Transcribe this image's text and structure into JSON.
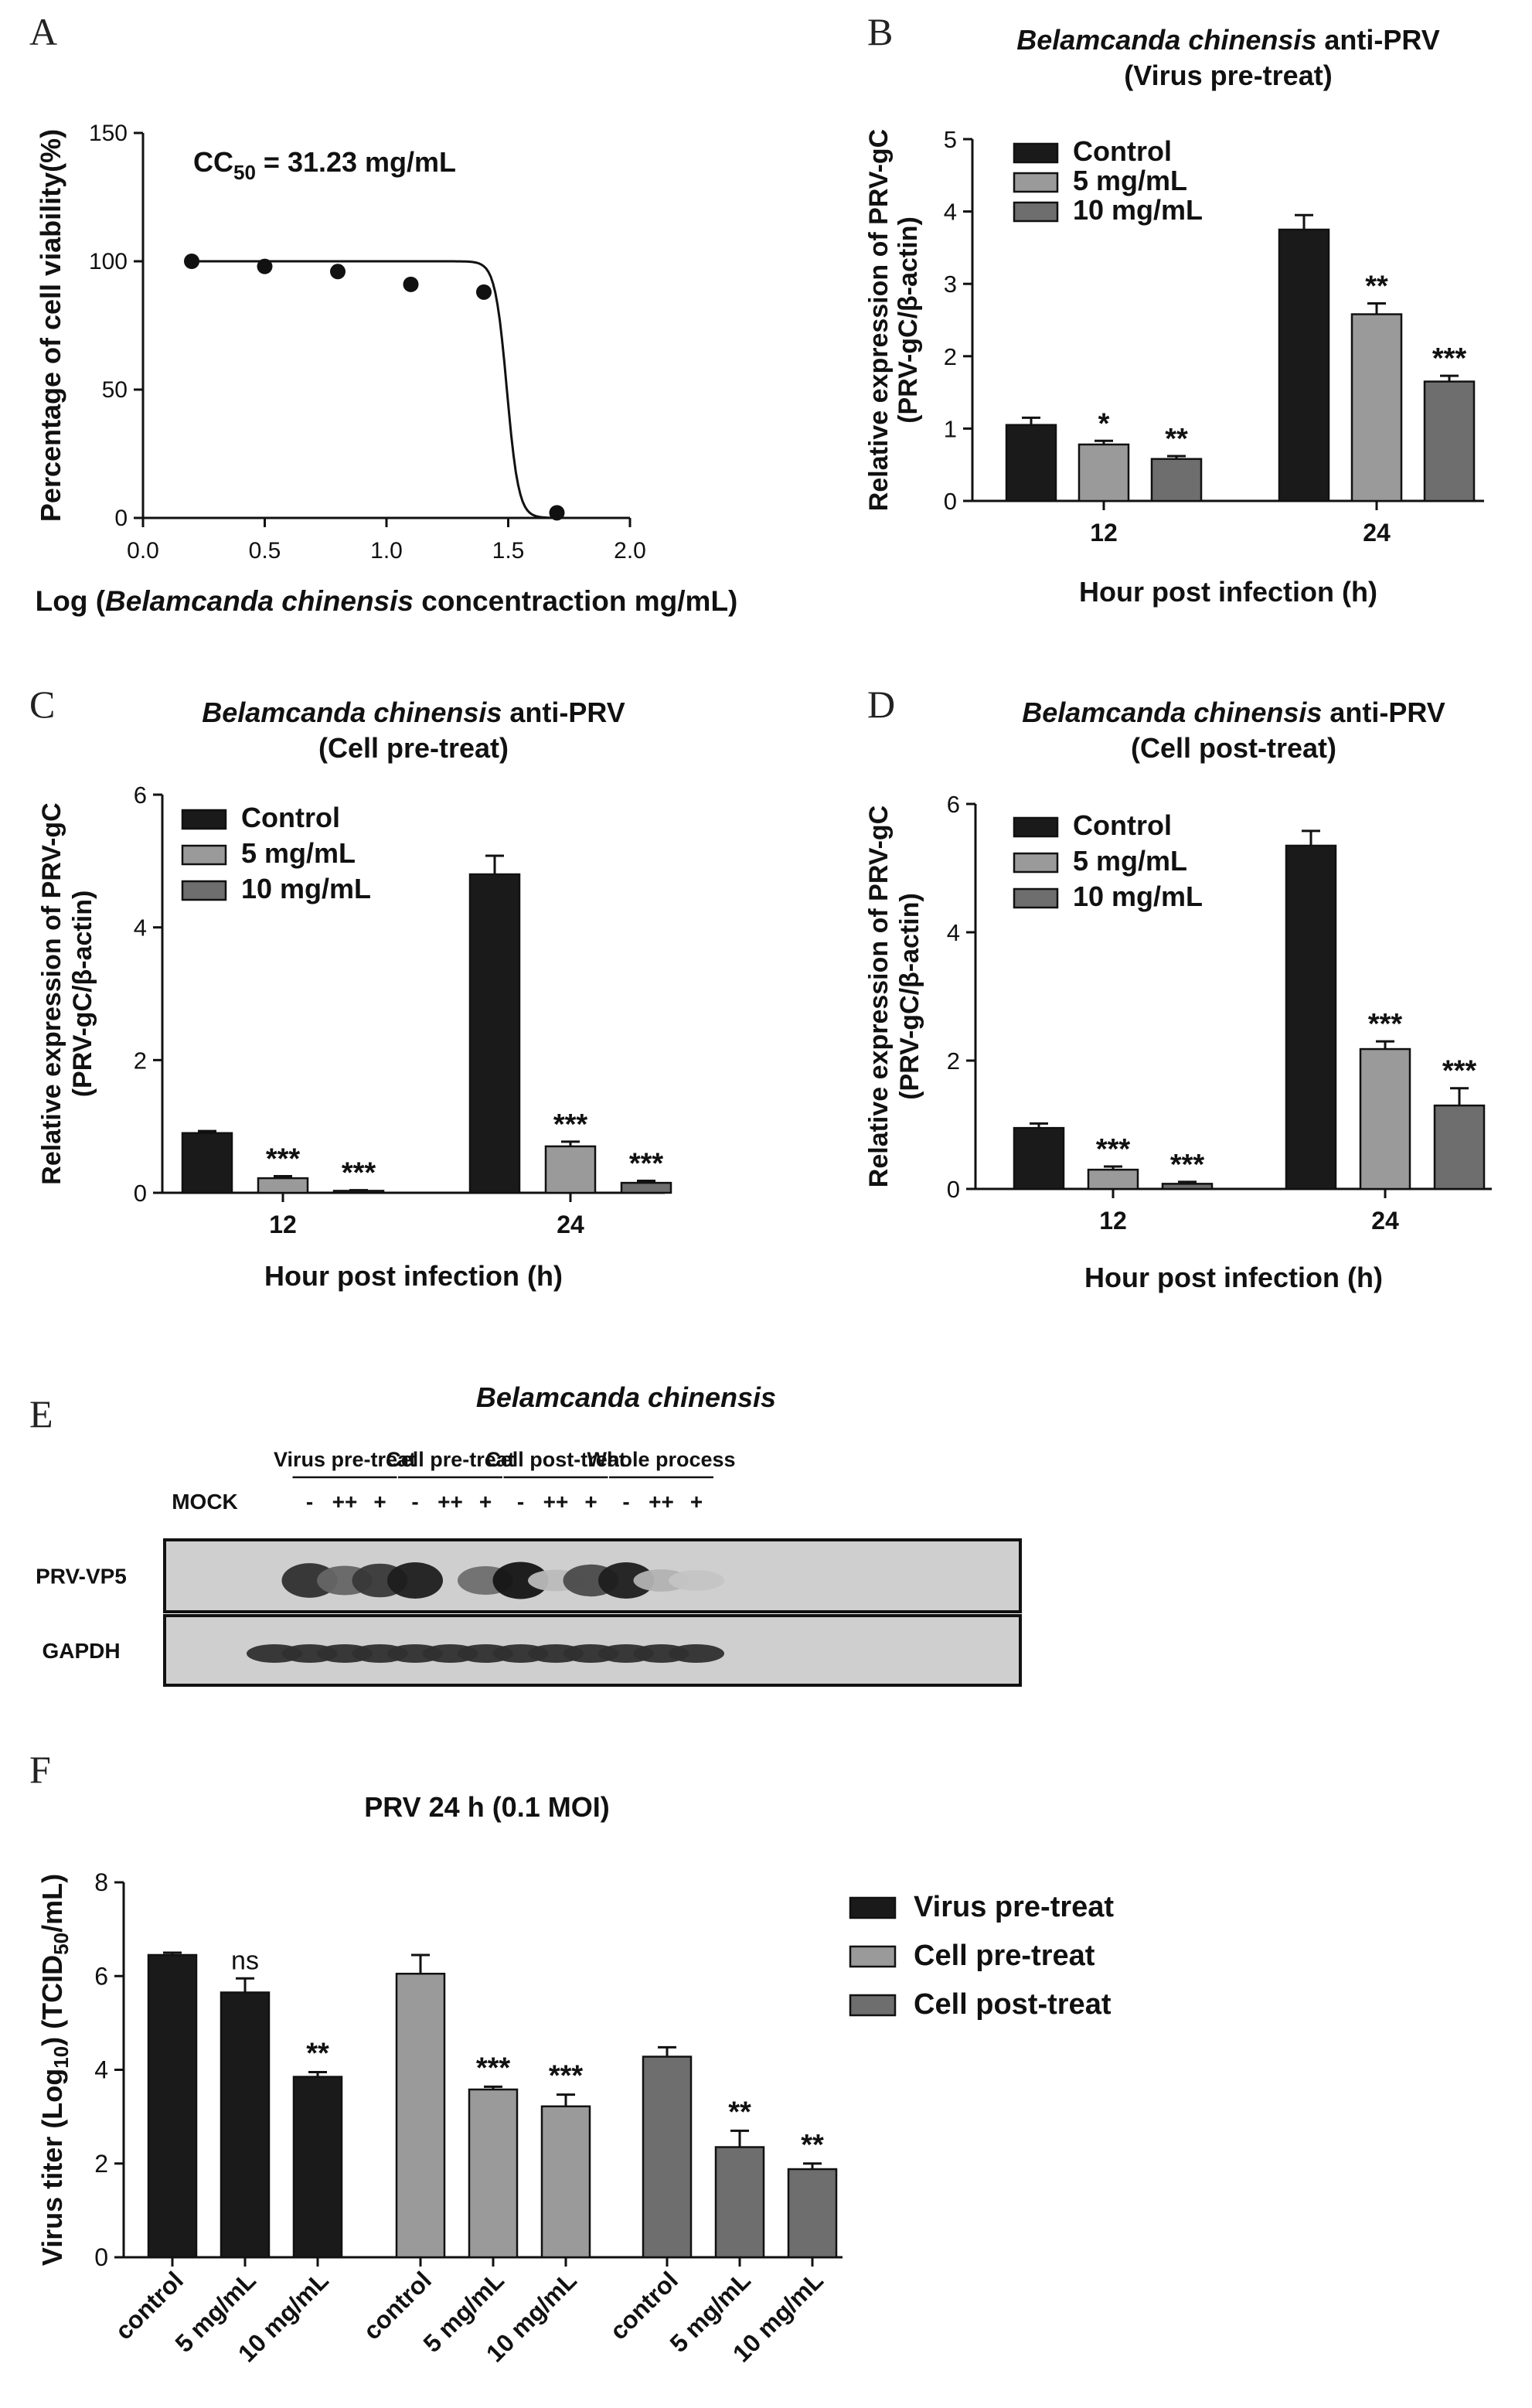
{
  "chart_data": [
    {
      "id": "A",
      "panel_label": "A",
      "type": "scatter",
      "annotation": "CC",
      "annotation_sub": "50",
      "annotation_rest": " = 31.23 mg/mL",
      "xlabel_pre": "Log (",
      "xlabel_italic": "Belamcanda chinensis",
      "xlabel_post": " concentraction mg/mL)",
      "ylabel": "Percentage of cell viability(%)",
      "xlim": [
        0.0,
        2.0
      ],
      "ylim": [
        0,
        150
      ],
      "xticks": [
        "0.0",
        "0.5",
        "1.0",
        "1.5",
        "2.0"
      ],
      "yticks": [
        "0",
        "50",
        "100",
        "150"
      ],
      "points": [
        {
          "x": 0.2,
          "y": 100
        },
        {
          "x": 0.5,
          "y": 98
        },
        {
          "x": 0.8,
          "y": 96
        },
        {
          "x": 1.1,
          "y": 91
        },
        {
          "x": 1.4,
          "y": 88
        },
        {
          "x": 1.7,
          "y": 2
        }
      ],
      "fit": {
        "top": 100,
        "bottom": 0,
        "log_ic50": 1.4945,
        "hill": 18
      }
    },
    {
      "id": "B",
      "panel_label": "B",
      "type": "bar",
      "title_italic": "Belamcanda chinensis",
      "title_rest": " anti-PRV",
      "subtitle": "(Virus pre-treat)",
      "ylabel1": "Relative expression of PRV-gC",
      "ylabel2": "(PRV-gC/β-actin)",
      "xlabel": "Hour post infection (h)",
      "categories": [
        "12",
        "24"
      ],
      "ylim": [
        0,
        5
      ],
      "yticks": [
        "0",
        "1",
        "2",
        "3",
        "4",
        "5"
      ],
      "legend_position": "top-left",
      "series": [
        {
          "name": "Control",
          "color": "#1a1a1a",
          "values": [
            1.05,
            3.75
          ],
          "errors": [
            0.1,
            0.2
          ],
          "sig": [
            "",
            ""
          ]
        },
        {
          "name": "5 mg/mL",
          "color": "#9a9a9a",
          "values": [
            0.78,
            2.58
          ],
          "errors": [
            0.05,
            0.15
          ],
          "sig": [
            "*",
            "**"
          ]
        },
        {
          "name": "10 mg/mL",
          "color": "#6e6e6e",
          "values": [
            0.58,
            1.65
          ],
          "errors": [
            0.04,
            0.08
          ],
          "sig": [
            "**",
            "***"
          ]
        }
      ]
    },
    {
      "id": "C",
      "panel_label": "C",
      "type": "bar",
      "title_italic": "Belamcanda chinensis",
      "title_rest": " anti-PRV",
      "subtitle": "(Cell pre-treat)",
      "ylabel1": "Relative expression of PRV-gC",
      "ylabel2": "(PRV-gC/β-actin)",
      "xlabel": "Hour post infection (h)",
      "categories": [
        "12",
        "24"
      ],
      "ylim": [
        0,
        6
      ],
      "yticks": [
        "0",
        "2",
        "4",
        "6"
      ],
      "legend_position": "top-left",
      "series": [
        {
          "name": "Control",
          "color": "#1a1a1a",
          "values": [
            0.9,
            4.8
          ],
          "errors": [
            0.03,
            0.28
          ],
          "sig": [
            "",
            ""
          ]
        },
        {
          "name": "5 mg/mL",
          "color": "#9a9a9a",
          "values": [
            0.22,
            0.7
          ],
          "errors": [
            0.03,
            0.07
          ],
          "sig": [
            "***",
            "***"
          ]
        },
        {
          "name": "10 mg/mL",
          "color": "#6e6e6e",
          "values": [
            0.03,
            0.15
          ],
          "errors": [
            0.01,
            0.03
          ],
          "sig": [
            "***",
            "***"
          ]
        }
      ]
    },
    {
      "id": "D",
      "panel_label": "D",
      "type": "bar",
      "title_italic": "Belamcanda chinensis",
      "title_rest": " anti-PRV",
      "subtitle": "(Cell post-treat)",
      "ylabel1": "Relative expression of PRV-gC",
      "ylabel2": "(PRV-gC/β-actin)",
      "xlabel": "Hour post infection (h)",
      "categories": [
        "12",
        "24"
      ],
      "ylim": [
        0,
        6
      ],
      "yticks": [
        "0",
        "2",
        "4",
        "6"
      ],
      "legend_position": "top-left",
      "series": [
        {
          "name": "Control",
          "color": "#1a1a1a",
          "values": [
            0.95,
            5.35
          ],
          "errors": [
            0.07,
            0.23
          ],
          "sig": [
            "",
            ""
          ]
        },
        {
          "name": "5 mg/mL",
          "color": "#9a9a9a",
          "values": [
            0.3,
            2.18
          ],
          "errors": [
            0.05,
            0.12
          ],
          "sig": [
            "***",
            "***"
          ]
        },
        {
          "name": "10 mg/mL",
          "color": "#6e6e6e",
          "values": [
            0.08,
            1.3
          ],
          "errors": [
            0.03,
            0.27
          ],
          "sig": [
            "***",
            "***"
          ]
        }
      ]
    },
    {
      "id": "F",
      "panel_label": "F",
      "type": "bar",
      "title": "PRV 24 h (0.1 MOI)",
      "ylabel_pre": "Virus titer (Log",
      "ylabel_sub1": "10",
      "ylabel_mid": ") (TCID",
      "ylabel_sub2": "50",
      "ylabel_post": "/mL)",
      "ylim": [
        0,
        8
      ],
      "yticks": [
        "0",
        "2",
        "4",
        "6",
        "8"
      ],
      "legend_position": "right",
      "groups": [
        {
          "name": "Virus pre-treat",
          "color": "#1a1a1a",
          "categories": [
            "control",
            "5 mg/mL",
            "10 mg/mL"
          ],
          "values": [
            6.45,
            5.65,
            3.85
          ],
          "errors": [
            0.05,
            0.3,
            0.1
          ],
          "sig": [
            "",
            "ns",
            "**"
          ]
        },
        {
          "name": "Cell pre-treat",
          "color": "#9a9a9a",
          "categories": [
            "control",
            "5 mg/mL",
            "10 mg/mL"
          ],
          "values": [
            6.05,
            3.58,
            3.22
          ],
          "errors": [
            0.4,
            0.06,
            0.25
          ],
          "sig": [
            "",
            "***",
            "***"
          ]
        },
        {
          "name": "Cell post-treat",
          "color": "#6e6e6e",
          "categories": [
            "control",
            "5 mg/mL",
            "10 mg/mL"
          ],
          "values": [
            4.28,
            2.35,
            1.88
          ],
          "errors": [
            0.2,
            0.35,
            0.12
          ],
          "sig": [
            "",
            "**",
            "**"
          ]
        }
      ]
    }
  ],
  "blot": {
    "panel_label": "E",
    "title": "Belamcanda chinensis",
    "mock_label": "MOCK",
    "groups": [
      {
        "label": "Virus pre-treat",
        "signs": [
          "-",
          "++",
          "+"
        ]
      },
      {
        "label": "Cell pre-treat",
        "signs": [
          "-",
          "++",
          "+"
        ]
      },
      {
        "label": "Cell post-treat",
        "signs": [
          "-",
          "++",
          "+"
        ]
      },
      {
        "label": "Whole process",
        "signs": [
          "-",
          "++",
          "+"
        ]
      }
    ],
    "rows": [
      {
        "label": "PRV-VP5",
        "intensities": [
          0.0,
          0.85,
          0.55,
          0.8,
          0.95,
          0.0,
          0.5,
          1.0,
          0.08,
          0.7,
          0.95,
          0.12,
          0.02
        ]
      },
      {
        "label": "GAPDH",
        "intensities": [
          0.85,
          0.85,
          0.85,
          0.85,
          0.85,
          0.85,
          0.85,
          0.85,
          0.85,
          0.85,
          0.85,
          0.85,
          0.85
        ]
      }
    ]
  }
}
